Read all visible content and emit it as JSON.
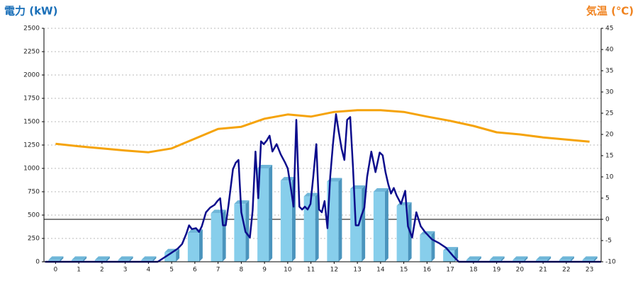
{
  "chart_data": {
    "type": "bar",
    "y_label": "電力 (kW)",
    "y2_label": "気温 (℃)",
    "categories": [
      "0",
      "1",
      "2",
      "3",
      "4",
      "5",
      "6",
      "7",
      "8",
      "9",
      "10",
      "11",
      "12",
      "13",
      "14",
      "15",
      "16",
      "17",
      "18",
      "19",
      "20",
      "21",
      "22",
      "23"
    ],
    "values": [
      20,
      20,
      20,
      20,
      20,
      100,
      310,
      520,
      620,
      1000,
      870,
      700,
      860,
      780,
      750,
      600,
      290,
      120,
      20,
      20,
      20,
      20,
      20,
      20
    ],
    "color": "#87ceeb",
    "ylim": [
      0,
      2500
    ],
    "yticks": [
      0,
      250,
      500,
      750,
      1000,
      1250,
      1500,
      1750,
      2000,
      2250,
      2500
    ],
    "y2lim": [
      -10,
      45
    ],
    "y2ticks": [
      -10,
      -5,
      0,
      5,
      10,
      15,
      20,
      25,
      30,
      35,
      40,
      45
    ],
    "grid": true,
    "series": [
      {
        "type": "line",
        "color": "#0c0c8c",
        "x": [
          -0.45,
          4.4,
          4.96,
          5.26,
          5.45,
          5.63,
          5.75,
          5.87,
          6.05,
          6.18,
          6.3,
          6.48,
          6.66,
          6.85,
          6.97,
          7.09,
          7.21,
          7.33,
          7.45,
          7.64,
          7.76,
          7.88,
          8.0,
          8.18,
          8.37,
          8.49,
          8.61,
          8.73,
          8.85,
          8.97,
          9.1,
          9.22,
          9.34,
          9.52,
          9.7,
          9.89,
          10.0,
          10.13,
          10.25,
          10.37,
          10.5,
          10.62,
          10.74,
          10.86,
          10.98,
          11.1,
          11.23,
          11.35,
          11.47,
          11.59,
          11.71,
          11.83,
          11.95,
          12.08,
          12.2,
          12.32,
          12.44,
          12.56,
          12.69,
          12.81,
          12.93,
          13.05,
          13.17,
          13.3,
          13.42,
          13.6,
          13.78,
          13.96,
          14.09,
          14.21,
          14.33,
          14.45,
          14.57,
          14.69,
          14.88,
          15.06,
          15.18,
          15.36,
          15.54,
          15.73,
          15.91,
          16.21,
          16.52,
          16.82,
          17.13,
          17.37,
          23.5
        ],
        "values": [
          0,
          0,
          90,
          140,
          190,
          300,
          390,
          350,
          360,
          320,
          380,
          530,
          580,
          610,
          650,
          680,
          390,
          390,
          610,
          990,
          1060,
          1090,
          530,
          320,
          260,
          550,
          1180,
          680,
          1290,
          1260,
          1300,
          1350,
          1180,
          1260,
          1150,
          1060,
          1000,
          800,
          590,
          1520,
          590,
          560,
          590,
          560,
          620,
          910,
          1260,
          560,
          530,
          650,
          360,
          910,
          1260,
          1580,
          1390,
          1210,
          1090,
          1520,
          1550,
          1020,
          390,
          390,
          490,
          580,
          910,
          1180,
          960,
          1170,
          1140,
          960,
          830,
          730,
          790,
          710,
          620,
          760,
          380,
          260,
          530,
          380,
          320,
          240,
          200,
          150,
          60,
          0,
          0
        ]
      },
      {
        "type": "line",
        "axis": "y2",
        "color": "#f5a30a",
        "values": [
          17.8,
          17.2,
          16.7,
          16.2,
          15.8,
          16.7,
          19,
          21.3,
          21.8,
          23.7,
          24.7,
          24.2,
          25.3,
          25.7,
          25.7,
          25.3,
          24.2,
          23.2,
          22,
          20.5,
          20,
          19.3,
          18.8,
          18.3
        ]
      }
    ]
  }
}
